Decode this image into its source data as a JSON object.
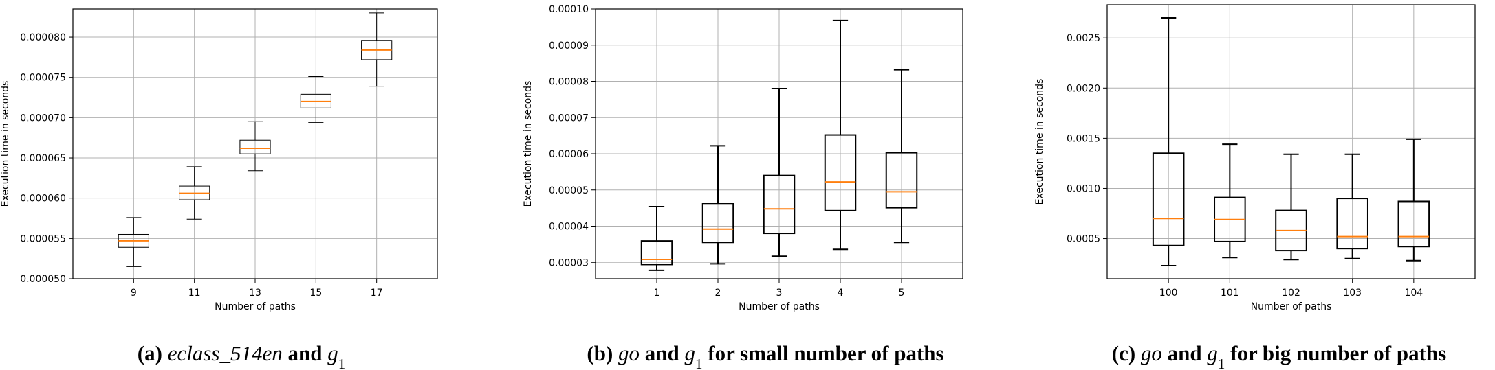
{
  "chart_data": [
    {
      "type": "box",
      "xlabel": "Number of paths",
      "ylabel": "Execution time in seconds",
      "ylim": [
        5e-05,
        8.35e-05
      ],
      "yticks": [
        "0.000050",
        "0.000055",
        "0.000060",
        "0.000065",
        "0.000070",
        "0.000075",
        "0.000080"
      ],
      "ytick_values": [
        5e-05,
        5.5e-05,
        6e-05,
        6.5e-05,
        7e-05,
        7.5e-05,
        8e-05
      ],
      "grid": true,
      "categories": [
        "9",
        "11",
        "13",
        "15",
        "17"
      ],
      "boxes": [
        {
          "min": 5.15e-05,
          "q1": 5.39e-05,
          "median": 5.47e-05,
          "q3": 5.55e-05,
          "max": 5.76e-05
        },
        {
          "min": 5.74e-05,
          "q1": 5.98e-05,
          "median": 6.06e-05,
          "q3": 6.15e-05,
          "max": 6.39e-05
        },
        {
          "min": 6.34e-05,
          "q1": 6.55e-05,
          "median": 6.62e-05,
          "q3": 6.72e-05,
          "max": 6.95e-05
        },
        {
          "min": 6.94e-05,
          "q1": 7.12e-05,
          "median": 7.2e-05,
          "q3": 7.29e-05,
          "max": 7.51e-05
        },
        {
          "min": 7.39e-05,
          "q1": 7.72e-05,
          "median": 7.84e-05,
          "q3": 7.96e-05,
          "max": 8.3e-05
        }
      ],
      "caption": {
        "prefix": "(a) ",
        "italic": "eclass_514en",
        "mid": " and ",
        "var": "g",
        "sub": "1",
        "suffix": ""
      }
    },
    {
      "type": "box",
      "xlabel": "Number of paths",
      "ylabel": "Execution time in seconds",
      "ylim": [
        2.55e-05,
        0.0001
      ],
      "yticks": [
        "0.00003",
        "0.00004",
        "0.00005",
        "0.00006",
        "0.00007",
        "0.00008",
        "0.00009",
        "0.00010"
      ],
      "ytick_values": [
        3e-05,
        4e-05,
        5e-05,
        6e-05,
        7e-05,
        8e-05,
        9e-05,
        0.0001
      ],
      "grid": true,
      "categories": [
        "1",
        "2",
        "3",
        "4",
        "5"
      ],
      "boxes": [
        {
          "min": 2.78e-05,
          "q1": 2.94e-05,
          "median": 3.08e-05,
          "q3": 3.59e-05,
          "max": 4.54e-05
        },
        {
          "min": 2.96e-05,
          "q1": 3.55e-05,
          "median": 3.92e-05,
          "q3": 4.63e-05,
          "max": 6.22e-05
        },
        {
          "min": 3.17e-05,
          "q1": 3.8e-05,
          "median": 4.48e-05,
          "q3": 5.4e-05,
          "max": 7.8e-05
        },
        {
          "min": 3.36e-05,
          "q1": 4.43e-05,
          "median": 5.22e-05,
          "q3": 6.52e-05,
          "max": 9.68e-05
        },
        {
          "min": 3.55e-05,
          "q1": 4.51e-05,
          "median": 4.95e-05,
          "q3": 6.03e-05,
          "max": 8.32e-05
        }
      ],
      "caption": {
        "prefix": "(b) ",
        "italic": "go",
        "mid": " and ",
        "var": "g",
        "sub": "1",
        "suffix": " for small number of paths"
      }
    },
    {
      "type": "box",
      "xlabel": "Number of paths",
      "ylabel": "Execution time in seconds",
      "ylim": [
        0.0001,
        0.00283
      ],
      "yticks": [
        "0.0005",
        "0.0010",
        "0.0015",
        "0.0020",
        "0.0025"
      ],
      "ytick_values": [
        0.0005,
        0.001,
        0.0015,
        0.002,
        0.0025
      ],
      "grid": true,
      "categories": [
        "100",
        "101",
        "102",
        "103",
        "104"
      ],
      "boxes": [
        {
          "min": 0.00023,
          "q1": 0.00043,
          "median": 0.0007,
          "q3": 0.00135,
          "max": 0.0027
        },
        {
          "min": 0.00031,
          "q1": 0.00047,
          "median": 0.00069,
          "q3": 0.00091,
          "max": 0.00144
        },
        {
          "min": 0.00029,
          "q1": 0.00038,
          "median": 0.00058,
          "q3": 0.00078,
          "max": 0.00134
        },
        {
          "min": 0.0003,
          "q1": 0.0004,
          "median": 0.00052,
          "q3": 0.0009,
          "max": 0.00134
        },
        {
          "min": 0.00028,
          "q1": 0.00042,
          "median": 0.00052,
          "q3": 0.00087,
          "max": 0.00149
        }
      ],
      "caption": {
        "prefix": "(c) ",
        "italic": "go",
        "mid": " and ",
        "var": "g",
        "sub": "1",
        "suffix": " for big number of paths"
      }
    }
  ],
  "colors": {
    "median": "#ff7f0e",
    "box": "#000000",
    "grid": "#b0b0b0"
  }
}
